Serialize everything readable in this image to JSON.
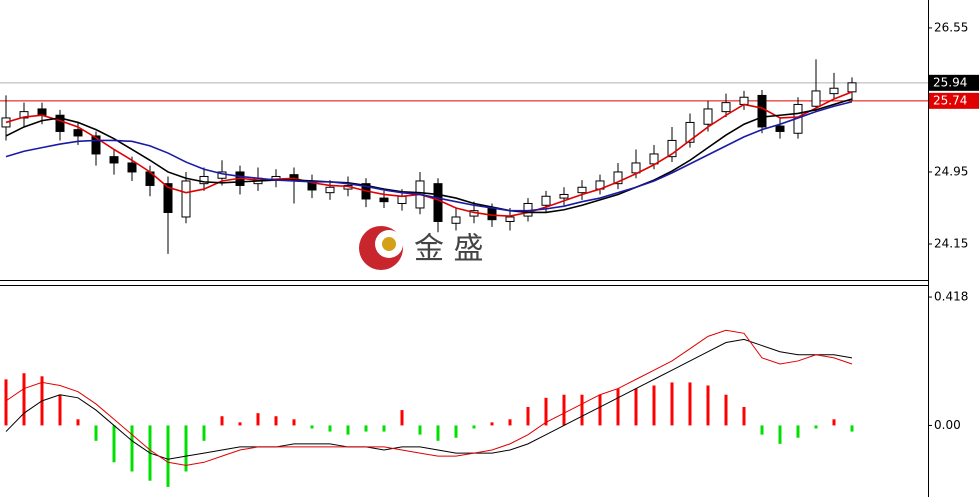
{
  "chart_data": [
    {
      "type": "candlestick",
      "open": [
        25.45,
        25.55,
        25.65,
        25.58,
        25.42,
        25.35,
        25.12,
        25.05,
        24.95,
        24.82,
        24.45,
        24.82,
        24.88,
        24.95,
        24.82,
        24.86,
        24.92,
        24.85,
        24.72,
        24.76,
        24.82,
        24.66,
        24.6,
        24.55,
        24.82,
        24.38,
        24.46,
        24.55,
        24.4,
        24.46,
        24.58,
        24.66,
        24.72,
        24.76,
        24.82,
        24.94,
        25.04,
        25.12,
        25.28,
        25.48,
        25.62,
        25.7,
        25.8,
        25.46,
        25.38,
        25.68,
        25.82,
        25.84
      ],
      "high": [
        25.8,
        25.72,
        25.72,
        25.64,
        25.5,
        25.4,
        25.2,
        25.12,
        25.02,
        24.9,
        24.95,
        25.0,
        25.08,
        25.02,
        25.0,
        24.98,
        25.0,
        24.92,
        24.86,
        24.9,
        24.88,
        24.74,
        24.76,
        24.95,
        24.88,
        24.55,
        24.62,
        24.6,
        24.55,
        24.66,
        24.74,
        24.78,
        24.86,
        24.92,
        25.05,
        25.2,
        25.25,
        25.45,
        25.6,
        25.74,
        25.82,
        25.85,
        25.86,
        25.55,
        25.78,
        26.2,
        26.05,
        26.0
      ],
      "low": [
        25.3,
        25.45,
        25.48,
        25.3,
        25.25,
        25.02,
        24.92,
        24.85,
        24.68,
        24.04,
        24.38,
        24.74,
        24.8,
        24.7,
        24.74,
        24.78,
        24.6,
        24.66,
        24.64,
        24.68,
        24.56,
        24.55,
        24.52,
        24.48,
        24.28,
        24.3,
        24.38,
        24.34,
        24.3,
        24.4,
        24.5,
        24.58,
        24.64,
        24.7,
        24.76,
        24.88,
        24.98,
        25.06,
        25.22,
        25.4,
        25.56,
        25.64,
        25.38,
        25.32,
        25.32,
        25.62,
        25.76,
        25.74
      ],
      "close": [
        25.55,
        25.62,
        25.58,
        25.4,
        25.35,
        25.15,
        25.05,
        24.95,
        24.8,
        24.5,
        24.85,
        24.9,
        24.95,
        24.8,
        24.88,
        24.9,
        24.85,
        24.75,
        24.78,
        24.8,
        24.65,
        24.62,
        24.68,
        24.85,
        24.4,
        24.45,
        24.52,
        24.42,
        24.45,
        24.6,
        24.68,
        24.7,
        24.78,
        24.85,
        24.95,
        25.05,
        25.15,
        25.3,
        25.5,
        25.65,
        25.72,
        25.78,
        25.45,
        25.4,
        25.7,
        25.85,
        25.88,
        25.94
      ],
      "series": [
        {
          "color": "#e00000",
          "values": [
            25.5,
            25.56,
            25.58,
            25.52,
            25.45,
            25.33,
            25.2,
            25.08,
            24.95,
            24.78,
            24.72,
            24.76,
            24.85,
            24.88,
            24.86,
            24.87,
            24.88,
            24.83,
            24.8,
            24.79,
            24.74,
            24.7,
            24.68,
            24.7,
            24.64,
            24.55,
            24.5,
            24.47,
            24.46,
            24.5,
            24.56,
            24.63,
            24.7,
            24.76,
            24.84,
            24.93,
            25.03,
            25.15,
            25.3,
            25.45,
            25.58,
            25.7,
            25.66,
            25.55,
            25.56,
            25.66,
            25.76,
            25.84
          ]
        },
        {
          "color": "#000000",
          "values": [
            25.35,
            25.45,
            25.52,
            25.55,
            25.5,
            25.42,
            25.32,
            25.2,
            25.08,
            24.95,
            24.88,
            24.84,
            24.83,
            24.84,
            24.85,
            24.86,
            24.86,
            24.85,
            24.84,
            24.83,
            24.8,
            24.76,
            24.73,
            24.72,
            24.7,
            24.66,
            24.6,
            24.56,
            24.52,
            24.5,
            24.5,
            24.53,
            24.58,
            24.64,
            24.7,
            24.78,
            24.86,
            24.96,
            25.08,
            25.22,
            25.36,
            25.48,
            25.56,
            25.58,
            25.6,
            25.64,
            25.7,
            25.76
          ]
        },
        {
          "color": "#1a1aa8",
          "values": [
            25.12,
            25.18,
            25.22,
            25.26,
            25.29,
            25.3,
            25.3,
            25.29,
            25.24,
            25.16,
            25.06,
            24.98,
            24.93,
            24.9,
            24.88,
            24.86,
            24.85,
            24.84,
            24.84,
            24.82,
            24.79,
            24.75,
            24.72,
            24.7,
            24.66,
            24.62,
            24.58,
            24.55,
            24.52,
            24.52,
            24.54,
            24.57,
            24.62,
            24.66,
            24.72,
            24.78,
            24.85,
            24.94,
            25.04,
            25.14,
            25.24,
            25.34,
            25.42,
            25.48,
            25.55,
            25.62,
            25.68,
            25.73
          ]
        }
      ],
      "ylim": [
        23.75,
        26.86
      ],
      "yticks": [
        26.55,
        24.95,
        24.15
      ],
      "last_price": 25.94,
      "alert_level": 25.74,
      "watermark": "金 盛"
    },
    {
      "type": "macd",
      "histogram": [
        0.15,
        0.17,
        0.16,
        0.1,
        0.02,
        -0.05,
        -0.12,
        -0.15,
        -0.18,
        -0.2,
        -0.15,
        -0.05,
        0.03,
        0.01,
        0.04,
        0.03,
        0.02,
        -0.01,
        -0.02,
        -0.03,
        -0.02,
        -0.02,
        0.05,
        -0.03,
        -0.05,
        -0.04,
        -0.01,
        0.01,
        0.02,
        0.06,
        0.09,
        0.1,
        0.1,
        0.1,
        0.12,
        0.12,
        0.13,
        0.14,
        0.14,
        0.13,
        0.1,
        0.06,
        -0.03,
        -0.06,
        -0.04,
        -0.01,
        0.02,
        -0.02
      ],
      "positive_color": "#ff0000",
      "negative_color": "#00e000",
      "series": [
        {
          "color": "#000000",
          "values": [
            -0.02,
            0.04,
            0.08,
            0.1,
            0.09,
            0.05,
            0.0,
            -0.05,
            -0.09,
            -0.11,
            -0.1,
            -0.09,
            -0.08,
            -0.07,
            -0.07,
            -0.07,
            -0.06,
            -0.06,
            -0.06,
            -0.07,
            -0.07,
            -0.08,
            -0.07,
            -0.07,
            -0.08,
            -0.09,
            -0.09,
            -0.09,
            -0.08,
            -0.06,
            -0.03,
            0.0,
            0.03,
            0.06,
            0.09,
            0.12,
            0.15,
            0.18,
            0.21,
            0.24,
            0.27,
            0.28,
            0.26,
            0.24,
            0.23,
            0.23,
            0.23,
            0.22
          ]
        },
        {
          "color": "#e00000",
          "values": [
            0.08,
            0.12,
            0.14,
            0.13,
            0.11,
            0.07,
            0.02,
            -0.03,
            -0.08,
            -0.12,
            -0.13,
            -0.12,
            -0.1,
            -0.08,
            -0.07,
            -0.07,
            -0.07,
            -0.07,
            -0.07,
            -0.07,
            -0.07,
            -0.07,
            -0.08,
            -0.09,
            -0.1,
            -0.1,
            -0.09,
            -0.08,
            -0.06,
            -0.03,
            0.01,
            0.04,
            0.07,
            0.1,
            0.12,
            0.15,
            0.18,
            0.21,
            0.25,
            0.29,
            0.31,
            0.3,
            0.22,
            0.2,
            0.21,
            0.23,
            0.22,
            0.2
          ]
        }
      ],
      "ylim": [
        -0.233,
        0.454
      ],
      "yticks": [
        0.418,
        {
          "value": 0,
          "label": "0.00"
        }
      ]
    }
  ]
}
